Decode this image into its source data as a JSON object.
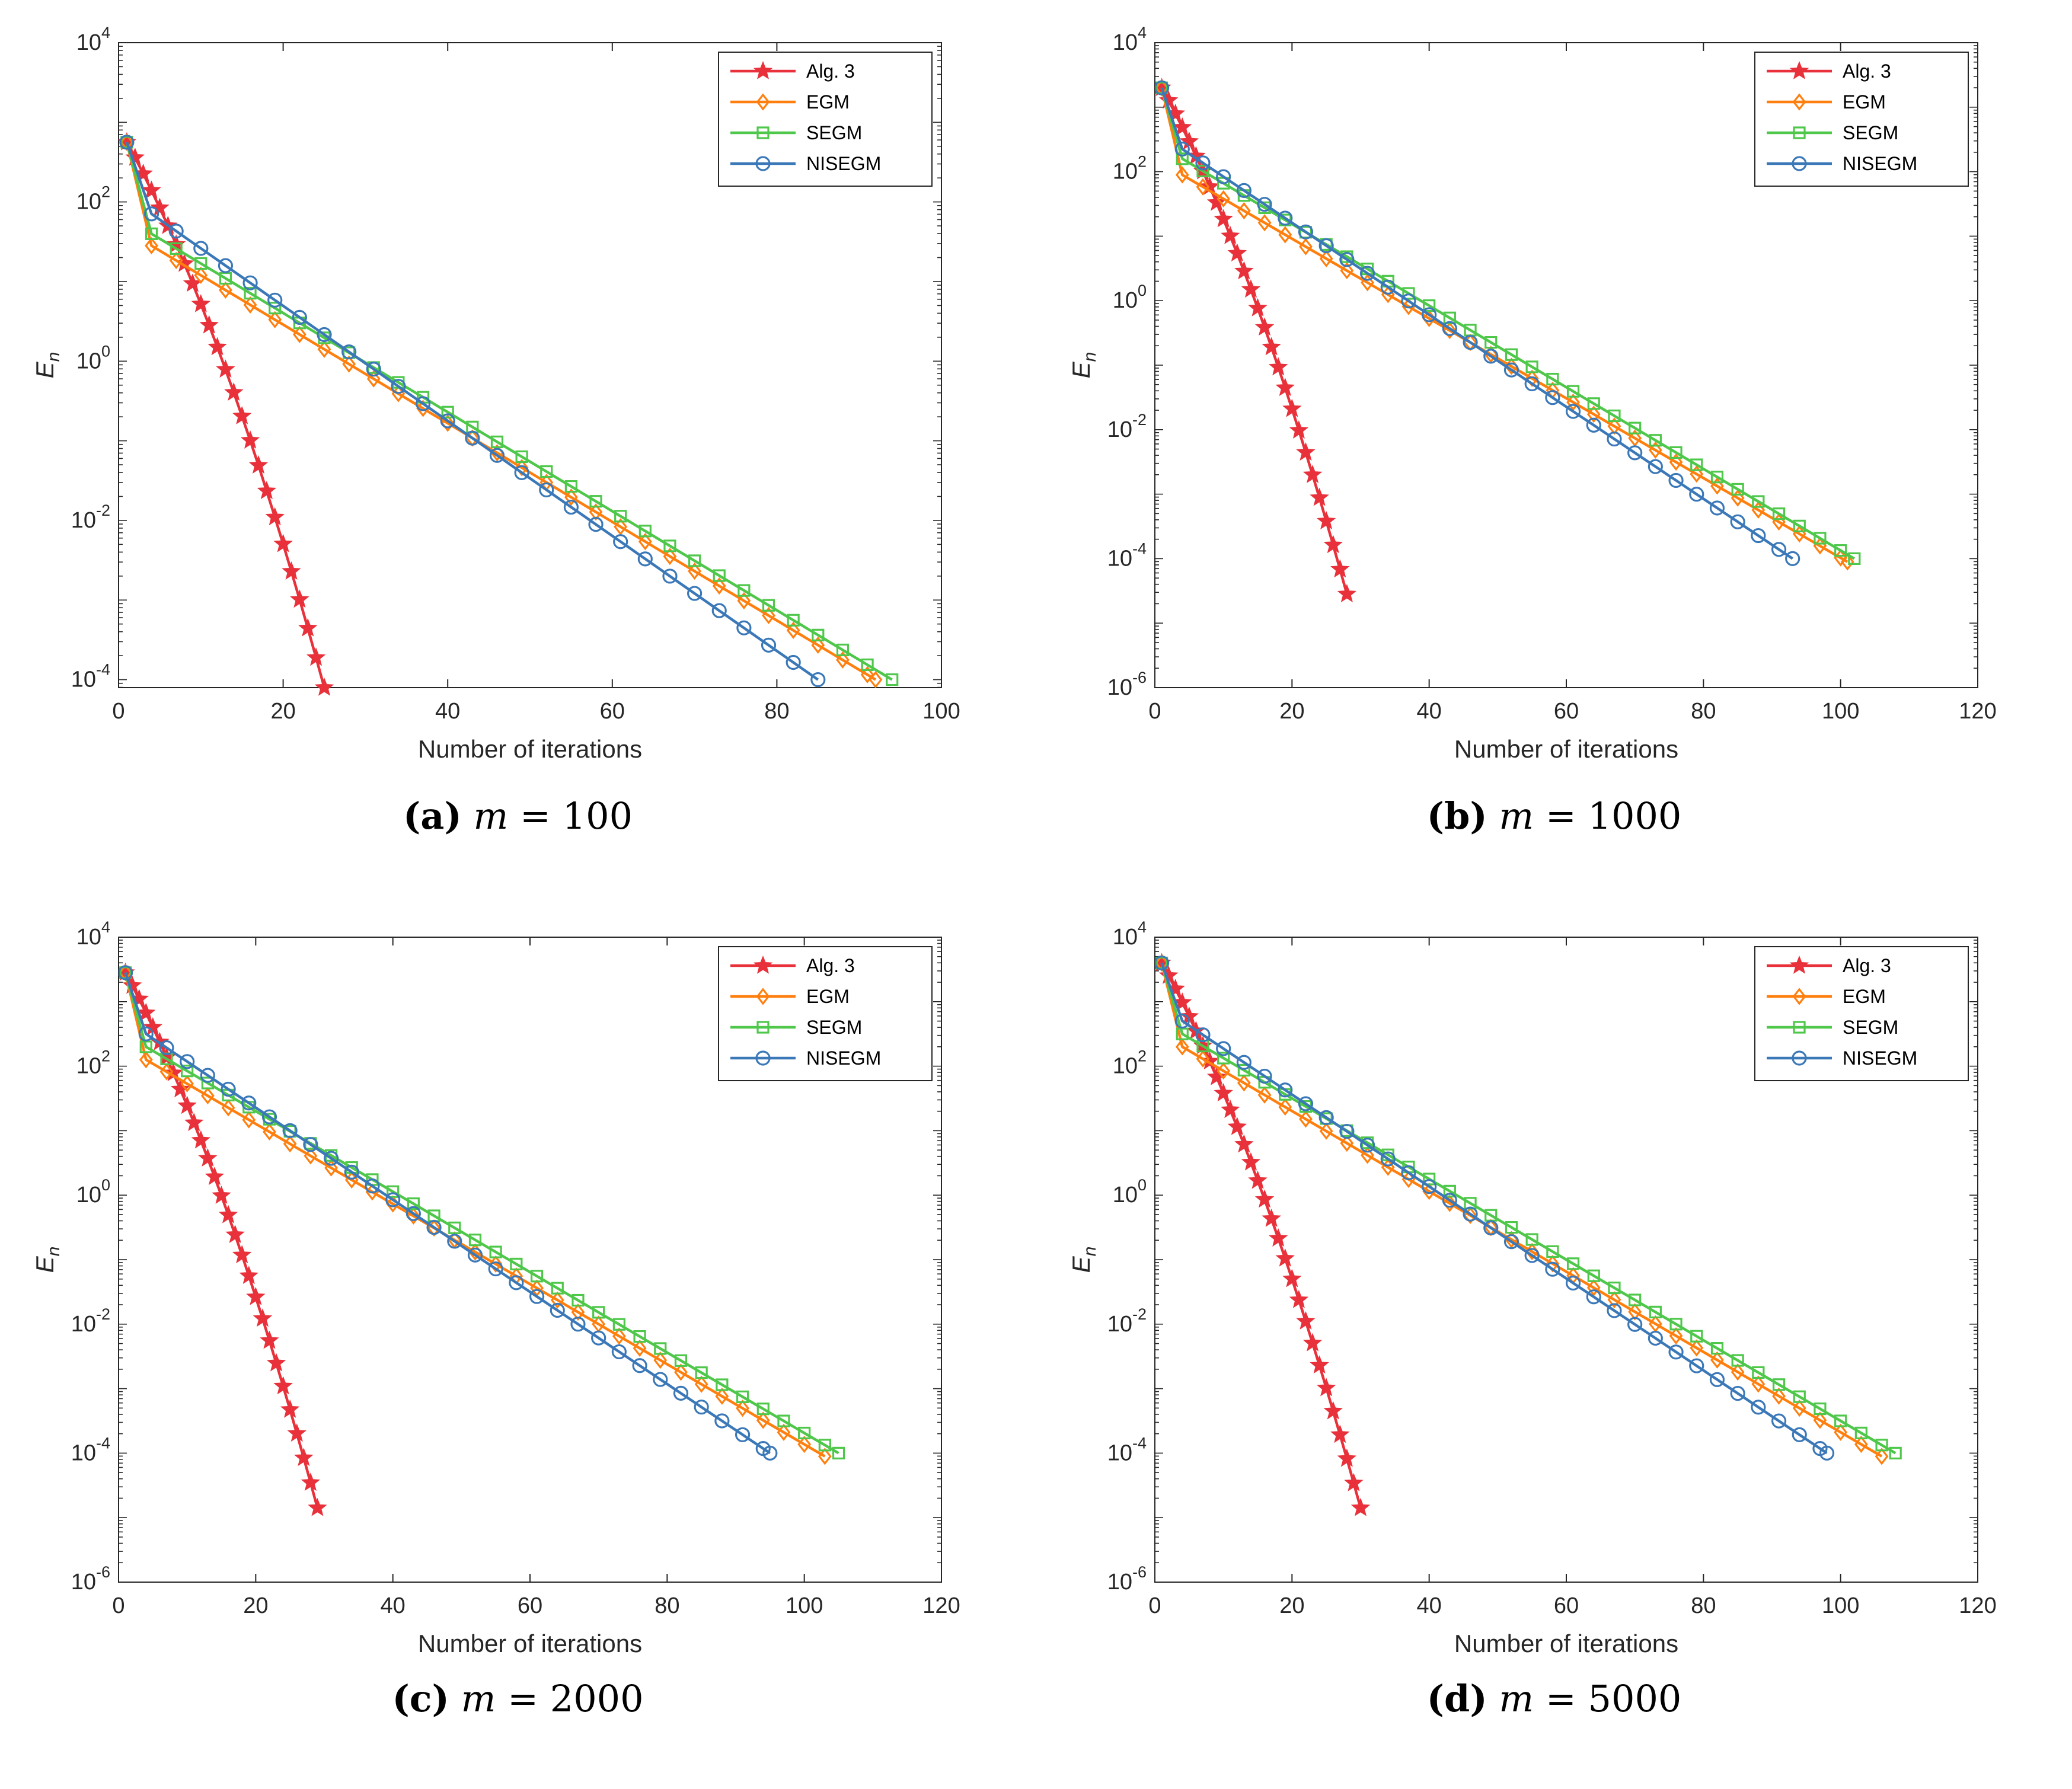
{
  "colors": {
    "alg3": "#e8313a",
    "egm": "#ff7f0e",
    "segm": "#4ec74a",
    "nisegm": "#3b78b8",
    "axis": "#262626",
    "grid": "none"
  },
  "legend_labels": [
    "Alg. 3",
    "EGM",
    "SEGM",
    "NISEGM"
  ],
  "chart_data": [
    {
      "panel": "a",
      "type": "line",
      "yscale": "log",
      "xlabel": "Number of iterations",
      "ylabel": "E",
      "ylabel_sub": "n",
      "xlim": [
        0,
        100
      ],
      "xticks": [
        0,
        20,
        40,
        60,
        80,
        100
      ],
      "ylim_exp": [
        -4.1,
        4
      ],
      "ytick_exps": [
        -4,
        -2,
        0,
        2,
        4
      ],
      "legend_position": "top-right",
      "caption": {
        "letter": "(a)",
        "var": "m",
        "rest": " = 100"
      },
      "series": [
        {
          "name": "Alg. 3",
          "marker": "star",
          "x0": 1,
          "n": 25,
          "start_exp": 2.75,
          "end_exp": -4.1,
          "curve": 0.5
        },
        {
          "name": "EGM",
          "marker": "diamond",
          "x0": 1,
          "n": 92,
          "start_exp": 2.75,
          "end_exp": -4.0,
          "knee_x": 4,
          "knee_exp": 1.45
        },
        {
          "name": "SEGM",
          "marker": "square",
          "x0": 1,
          "n": 94,
          "start_exp": 2.75,
          "end_exp": -4.0,
          "knee_x": 4,
          "knee_exp": 1.6
        },
        {
          "name": "NISEGM",
          "marker": "circle",
          "x0": 1,
          "n": 85,
          "start_exp": 2.75,
          "end_exp": -4.0,
          "knee_x": 4,
          "knee_exp": 1.85
        }
      ]
    },
    {
      "panel": "b",
      "type": "line",
      "yscale": "log",
      "xlabel": "Number of iterations",
      "ylabel": "E",
      "ylabel_sub": "n",
      "xlim": [
        0,
        120
      ],
      "xticks": [
        0,
        20,
        40,
        60,
        80,
        100,
        120
      ],
      "ylim_exp": [
        -6,
        4
      ],
      "ytick_exps": [
        -6,
        -4,
        -2,
        0,
        2,
        4
      ],
      "legend_position": "top-right",
      "caption": {
        "letter": "(b)",
        "var": "m",
        "rest": " = 1000"
      },
      "series": [
        {
          "name": "Alg. 3",
          "marker": "star",
          "x0": 1,
          "n": 28,
          "start_exp": 3.3,
          "end_exp": -4.55,
          "curve": 0.5
        },
        {
          "name": "EGM",
          "marker": "diamond",
          "x0": 1,
          "n": 101,
          "start_exp": 3.3,
          "end_exp": -4.05,
          "knee_x": 4,
          "knee_exp": 1.95
        },
        {
          "name": "SEGM",
          "marker": "square",
          "x0": 1,
          "n": 102,
          "start_exp": 3.3,
          "end_exp": -4.0,
          "knee_x": 4,
          "knee_exp": 2.2
        },
        {
          "name": "NISEGM",
          "marker": "circle",
          "x0": 1,
          "n": 93,
          "start_exp": 3.3,
          "end_exp": -4.0,
          "knee_x": 4,
          "knee_exp": 2.35
        }
      ]
    },
    {
      "panel": "c",
      "type": "line",
      "yscale": "log",
      "xlabel": "Number of iterations",
      "ylabel": "E",
      "ylabel_sub": "n",
      "xlim": [
        0,
        120
      ],
      "xticks": [
        0,
        20,
        40,
        60,
        80,
        100,
        120
      ],
      "ylim_exp": [
        -6,
        4
      ],
      "ytick_exps": [
        -6,
        -4,
        -2,
        0,
        2,
        4
      ],
      "legend_position": "top-right",
      "caption": {
        "letter": "(c)",
        "var": "m",
        "rest": " = 2000"
      },
      "series": [
        {
          "name": "Alg. 3",
          "marker": "star",
          "x0": 1,
          "n": 29,
          "start_exp": 3.45,
          "end_exp": -4.85,
          "curve": 0.5
        },
        {
          "name": "EGM",
          "marker": "diamond",
          "x0": 1,
          "n": 103,
          "start_exp": 3.45,
          "end_exp": -4.05,
          "knee_x": 4,
          "knee_exp": 2.1
        },
        {
          "name": "SEGM",
          "marker": "square",
          "x0": 1,
          "n": 105,
          "start_exp": 3.45,
          "end_exp": -4.0,
          "knee_x": 4,
          "knee_exp": 2.3
        },
        {
          "name": "NISEGM",
          "marker": "circle",
          "x0": 1,
          "n": 95,
          "start_exp": 3.45,
          "end_exp": -4.0,
          "knee_x": 4,
          "knee_exp": 2.5
        }
      ]
    },
    {
      "panel": "d",
      "type": "line",
      "yscale": "log",
      "xlabel": "Number of iterations",
      "ylabel": "E",
      "ylabel_sub": "n",
      "xlim": [
        0,
        120
      ],
      "xticks": [
        0,
        20,
        40,
        60,
        80,
        100,
        120
      ],
      "ylim_exp": [
        -6,
        4
      ],
      "ytick_exps": [
        -6,
        -4,
        -2,
        0,
        2,
        4
      ],
      "legend_position": "top-right",
      "caption": {
        "letter": "(d)",
        "var": "m",
        "rest": " = 5000"
      },
      "series": [
        {
          "name": "Alg. 3",
          "marker": "star",
          "x0": 1,
          "n": 30,
          "start_exp": 3.6,
          "end_exp": -4.85,
          "curve": 0.5
        },
        {
          "name": "EGM",
          "marker": "diamond",
          "x0": 1,
          "n": 106,
          "start_exp": 3.6,
          "end_exp": -4.05,
          "knee_x": 4,
          "knee_exp": 2.3
        },
        {
          "name": "SEGM",
          "marker": "square",
          "x0": 1,
          "n": 108,
          "start_exp": 3.6,
          "end_exp": -4.0,
          "knee_x": 4,
          "knee_exp": 2.5
        },
        {
          "name": "NISEGM",
          "marker": "circle",
          "x0": 1,
          "n": 98,
          "start_exp": 3.6,
          "end_exp": -4.0,
          "knee_x": 4,
          "knee_exp": 2.7
        }
      ]
    }
  ]
}
